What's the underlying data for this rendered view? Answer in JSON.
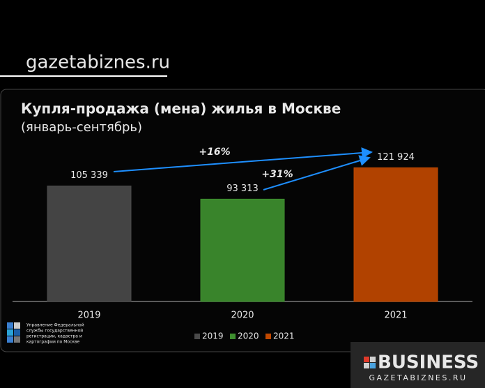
{
  "header": {
    "site": "gazetabiznes.ru"
  },
  "chart_data": {
    "type": "bar",
    "title": "Купля-продажа (мена) жилья в Москве",
    "subtitle": "(январь-сентябрь)",
    "categories": [
      "2019",
      "2020",
      "2021"
    ],
    "values": [
      105339,
      93313,
      121924
    ],
    "value_labels": [
      "105 339",
      "93 313",
      "121 924"
    ],
    "colors": [
      "#4a4a4a",
      "#3e8f2f",
      "#c04800"
    ],
    "ylim": [
      0,
      140000
    ],
    "annotations": [
      "+16%",
      "+31%"
    ],
    "legend": "bottom"
  },
  "footer": {
    "source": [
      "Управление Федеральной",
      "службы государственной",
      "регистрации, кадастра и",
      "картографии по Москве"
    ],
    "brand": "BUSINESS",
    "brand_site": "GAZETABIZNES.RU"
  }
}
